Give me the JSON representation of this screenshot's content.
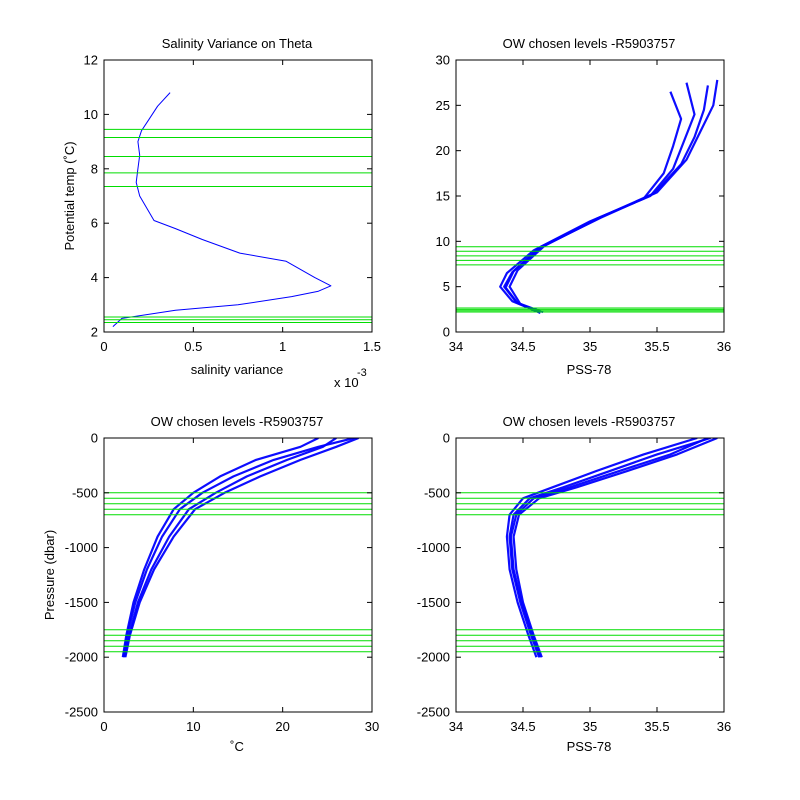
{
  "colors": {
    "profile": "#0000ff",
    "levels": "#00dd00",
    "axes": "#000000",
    "background": "#ffffff"
  },
  "chart_data": [
    {
      "id": "p1",
      "type": "line",
      "title": "Salinity Variance on Theta",
      "xlabel": "salinity variance",
      "ylabel": "Potential temp (˚C)",
      "xlim": [
        0,
        0.0015
      ],
      "ylim": [
        2,
        12
      ],
      "xticks": [
        0,
        0.0005,
        0.001,
        0.0015
      ],
      "xtick_labels": [
        "0",
        "0.5",
        "1",
        "1.5"
      ],
      "yticks": [
        2,
        4,
        6,
        8,
        10,
        12
      ],
      "ytick_labels": [
        "2",
        "4",
        "6",
        "8",
        "10",
        "12"
      ],
      "x_multiplier_base": "x 10",
      "x_multiplier_exp": "-3",
      "series": [
        {
          "x": [
            5e-05,
            0.0001,
            0.0004,
            0.00075,
            0.00105,
            0.0012,
            0.00127,
            0.00118,
            0.00102,
            0.00076,
            0.00055,
            0.0004,
            0.00028,
            0.0002,
            0.00018,
            0.00019,
            0.0002,
            0.00019,
            0.00021,
            0.00025,
            0.0003,
            0.00037
          ],
          "y": [
            2.2,
            2.5,
            2.8,
            3.0,
            3.3,
            3.5,
            3.7,
            4.0,
            4.6,
            4.9,
            5.4,
            5.8,
            6.1,
            7.0,
            7.5,
            8.0,
            8.5,
            9.0,
            9.4,
            9.8,
            10.3,
            10.8
          ]
        }
      ],
      "levels": [
        2.35,
        2.45,
        2.55,
        7.35,
        7.85,
        8.45,
        9.15,
        9.45
      ]
    },
    {
      "id": "p2",
      "type": "line",
      "title": "OW chosen levels -R5903757",
      "xlabel": "PSS-78",
      "ylabel": "",
      "xlim": [
        34,
        36
      ],
      "ylim": [
        0,
        30
      ],
      "xticks": [
        34,
        34.5,
        35,
        35.5,
        36
      ],
      "xtick_labels": [
        "34",
        "34.5",
        "35",
        "35.5",
        "36"
      ],
      "yticks": [
        0,
        5,
        10,
        15,
        20,
        25,
        30
      ],
      "ytick_labels": [
        "0",
        "5",
        "10",
        "15",
        "20",
        "25",
        "30"
      ],
      "series": [
        {
          "x": [
            34.62,
            34.45,
            34.36,
            34.42,
            34.62,
            35.05,
            35.45,
            35.62,
            35.7,
            35.78,
            35.72
          ],
          "y": [
            2.2,
            3.3,
            5.0,
            6.6,
            9.3,
            12.5,
            15.0,
            18.0,
            21.0,
            24.0,
            27.5
          ]
        },
        {
          "x": [
            34.65,
            34.48,
            34.4,
            34.46,
            34.66,
            35.1,
            35.48,
            35.68,
            35.78,
            35.85,
            35.88
          ],
          "y": [
            2.2,
            3.1,
            5.0,
            6.8,
            9.5,
            12.8,
            15.3,
            18.5,
            21.5,
            24.5,
            27.2
          ]
        },
        {
          "x": [
            34.6,
            34.42,
            34.33,
            34.38,
            34.58,
            35.0,
            35.4,
            35.55,
            35.62,
            35.68,
            35.6
          ],
          "y": [
            2.3,
            3.4,
            5.0,
            6.5,
            9.0,
            12.2,
            14.7,
            17.5,
            20.5,
            23.5,
            26.5
          ]
        },
        {
          "x": [
            34.63,
            34.46,
            34.37,
            34.43,
            34.64,
            35.08,
            35.5,
            35.72,
            35.82,
            35.92,
            35.95
          ],
          "y": [
            2.1,
            3.2,
            4.9,
            6.7,
            9.4,
            12.6,
            15.4,
            19.0,
            22.0,
            25.0,
            27.8
          ]
        }
      ],
      "levels": [
        2.2,
        2.35,
        2.5,
        2.65,
        7.4,
        7.9,
        8.4,
        8.9,
        9.4
      ]
    },
    {
      "id": "p3",
      "type": "line",
      "title": "OW chosen levels -R5903757",
      "xlabel": "˚C",
      "ylabel": "Pressure (dbar)",
      "xlim": [
        0,
        30
      ],
      "ylim": [
        -2500,
        0
      ],
      "xticks": [
        0,
        10,
        20,
        30
      ],
      "xtick_labels": [
        "0",
        "10",
        "20",
        "30"
      ],
      "yticks": [
        -2500,
        -2000,
        -1500,
        -1000,
        -500,
        0
      ],
      "ytick_labels": [
        "-2500",
        "-2000",
        "-1500",
        "-1000",
        "-500",
        "0"
      ],
      "series": [
        {
          "x": [
            2.2,
            2.6,
            3.5,
            4.8,
            6.5,
            8.5,
            11.0,
            14.5,
            19.0,
            24.0,
            28.0
          ],
          "y": [
            -2000,
            -1800,
            -1500,
            -1200,
            -900,
            -650,
            -500,
            -350,
            -200,
            -80,
            0
          ]
        },
        {
          "x": [
            2.3,
            2.8,
            3.8,
            5.3,
            7.3,
            9.5,
            12.5,
            16.0,
            20.5,
            24.5,
            26.0
          ],
          "y": [
            -2000,
            -1800,
            -1500,
            -1200,
            -900,
            -650,
            -500,
            -350,
            -200,
            -80,
            0
          ]
        },
        {
          "x": [
            2.1,
            2.5,
            3.3,
            4.5,
            6.0,
            7.8,
            10.0,
            13.0,
            17.0,
            22.0,
            24.0
          ],
          "y": [
            -2000,
            -1800,
            -1500,
            -1200,
            -900,
            -650,
            -500,
            -350,
            -200,
            -80,
            0
          ]
        },
        {
          "x": [
            2.4,
            2.9,
            4.0,
            5.6,
            7.8,
            10.2,
            13.5,
            17.5,
            22.0,
            26.0,
            28.5
          ],
          "y": [
            -2000,
            -1800,
            -1500,
            -1200,
            -900,
            -650,
            -500,
            -350,
            -200,
            -80,
            0
          ]
        }
      ],
      "levels": [
        -500,
        -550,
        -600,
        -650,
        -700,
        -1750,
        -1800,
        -1850,
        -1900,
        -1950
      ]
    },
    {
      "id": "p4",
      "type": "line",
      "title": "OW chosen levels -R5903757",
      "xlabel": "PSS-78",
      "ylabel": "",
      "xlim": [
        34,
        36
      ],
      "ylim": [
        -2500,
        0
      ],
      "xticks": [
        34,
        34.5,
        35,
        35.5,
        36
      ],
      "xtick_labels": [
        "34",
        "34.5",
        "35",
        "35.5",
        "36"
      ],
      "yticks": [
        -2500,
        -2000,
        -1500,
        -1000,
        -500,
        0
      ],
      "ytick_labels": [
        "-2500",
        "-2000",
        "-1500",
        "-1000",
        "-500",
        "0"
      ],
      "series": [
        {
          "x": [
            34.62,
            34.56,
            34.48,
            34.42,
            34.4,
            34.43,
            34.55,
            34.8,
            35.15,
            35.5,
            35.9
          ],
          "y": [
            -2000,
            -1800,
            -1500,
            -1200,
            -900,
            -700,
            -550,
            -450,
            -300,
            -150,
            0
          ]
        },
        {
          "x": [
            34.64,
            34.58,
            34.5,
            34.45,
            34.43,
            34.47,
            34.62,
            34.9,
            35.28,
            35.65,
            35.95
          ],
          "y": [
            -2000,
            -1800,
            -1500,
            -1200,
            -900,
            -700,
            -550,
            -450,
            -300,
            -150,
            0
          ]
        },
        {
          "x": [
            34.6,
            34.54,
            34.46,
            34.4,
            34.38,
            34.4,
            34.5,
            34.72,
            35.05,
            35.4,
            35.8
          ],
          "y": [
            -2000,
            -1800,
            -1500,
            -1200,
            -900,
            -700,
            -550,
            -450,
            -300,
            -150,
            0
          ]
        },
        {
          "x": [
            34.63,
            34.57,
            34.49,
            34.43,
            34.41,
            34.45,
            34.58,
            34.85,
            35.22,
            35.6,
            35.88
          ],
          "y": [
            -2000,
            -1800,
            -1500,
            -1200,
            -900,
            -700,
            -550,
            -450,
            -300,
            -150,
            0
          ]
        }
      ],
      "levels": [
        -500,
        -550,
        -600,
        -650,
        -700,
        -1750,
        -1800,
        -1850,
        -1900,
        -1950
      ]
    }
  ]
}
